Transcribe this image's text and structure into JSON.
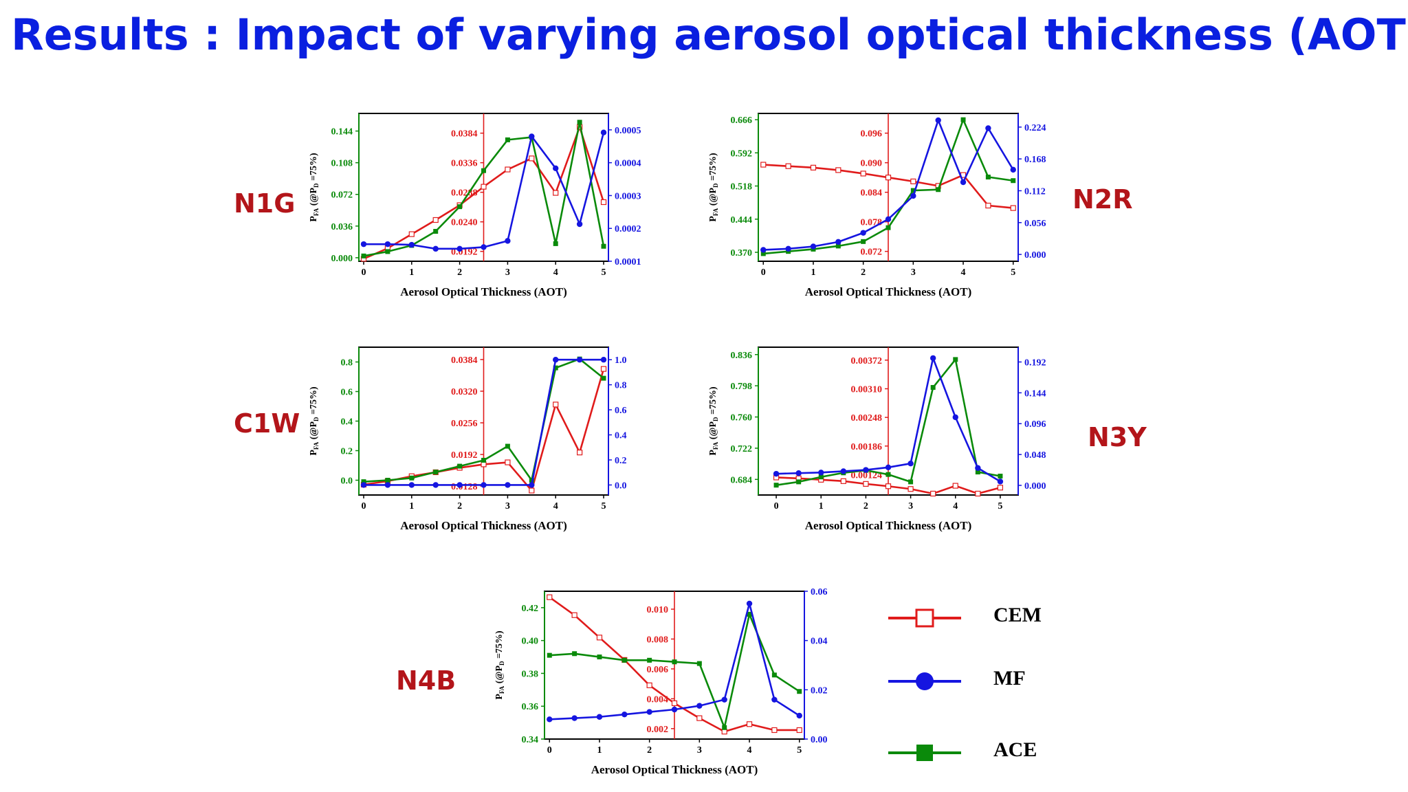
{
  "page": {
    "title": "Results : Impact of varying aerosol optical thickness (AOT)"
  },
  "colors": {
    "CEM": "#e01b1b",
    "MF": "#1515e0",
    "ACE": "#0a8a0a",
    "title": "#0a1fe0",
    "label": "#b3151a"
  },
  "legend": [
    {
      "name": "CEM",
      "marker": "open-square",
      "color": "#e01b1b"
    },
    {
      "name": "MF",
      "marker": "filled-circle",
      "color": "#1515e0"
    },
    {
      "name": "ACE",
      "marker": "filled-square",
      "color": "#0a8a0a"
    }
  ],
  "chart_data": [
    {
      "id": "n1g",
      "label": "N1G",
      "type": "line",
      "xlabel": "Aerosol Optical Thickness (AOT)",
      "ylabel": "P_FA (@P_D =75%)",
      "x": [
        0,
        0.5,
        1,
        1.5,
        2,
        2.5,
        3,
        3.5,
        4,
        4.5,
        5
      ],
      "xlim": [
        -0.1,
        5.1
      ],
      "xticks": [
        0,
        1,
        2,
        3,
        4,
        5
      ],
      "vline": 2.5,
      "left_axis": {
        "color": "#0a8a0a",
        "series": "ACE",
        "range": [
          -0.004,
          0.164
        ],
        "ticks": [
          0.0,
          0.036,
          0.072,
          0.108,
          0.144
        ],
        "labels": [
          "0.000",
          "0.036",
          "0.072",
          "0.108",
          "0.144"
        ]
      },
      "inner_axis": {
        "color": "#e01b1b",
        "series": "CEM",
        "range": [
          0.0176,
          0.0416
        ],
        "ticks": [
          0.0192,
          0.024,
          0.0288,
          0.0336,
          0.0384
        ],
        "labels": [
          "0.0192",
          "0.0240",
          "0.0288",
          "0.0336",
          "0.0384"
        ]
      },
      "right_axis": {
        "color": "#1515e0",
        "series": "MF",
        "range": [
          0.0001,
          0.00055
        ],
        "ticks": [
          0.0001,
          0.0002,
          0.0003,
          0.0004,
          0.0005
        ],
        "labels": [
          "0.0001",
          "0.0002",
          "0.0003",
          "0.0004",
          "0.0005"
        ]
      },
      "series": [
        {
          "name": "CEM",
          "values": [
            0.018,
            0.0197,
            0.022,
            0.0243,
            0.0267,
            0.0297,
            0.0325,
            0.0343,
            0.0287,
            0.0394,
            0.0272
          ]
        },
        {
          "name": "MF",
          "values": [
            0.000152,
            0.000152,
            0.00015,
            0.000138,
            0.000138,
            0.000143,
            0.000162,
            0.00048,
            0.000383,
            0.000213,
            0.000492
          ]
        },
        {
          "name": "ACE",
          "values": [
            0.002,
            0.007,
            0.014,
            0.03,
            0.058,
            0.099,
            0.134,
            0.137,
            0.016,
            0.154,
            0.013
          ]
        }
      ]
    },
    {
      "id": "n2r",
      "label": "N2R",
      "type": "line",
      "xlabel": "Aerosol Optical Thickness (AOT)",
      "ylabel": "P_FA (@P_D =75%)",
      "x": [
        0,
        0.5,
        1,
        1.5,
        2,
        2.5,
        3,
        3.5,
        4,
        4.5,
        5
      ],
      "xlim": [
        -0.1,
        5.1
      ],
      "xticks": [
        0,
        1,
        2,
        3,
        4,
        5
      ],
      "vline": 2.5,
      "left_axis": {
        "color": "#0a8a0a",
        "series": "ACE",
        "range": [
          0.35,
          0.68
        ],
        "ticks": [
          0.37,
          0.444,
          0.518,
          0.592,
          0.666
        ],
        "labels": [
          "0.370",
          "0.444",
          "0.518",
          "0.592",
          "0.666"
        ]
      },
      "inner_axis": {
        "color": "#e01b1b",
        "series": "CEM",
        "range": [
          0.07,
          0.1
        ],
        "ticks": [
          0.072,
          0.078,
          0.084,
          0.09,
          0.096
        ],
        "labels": [
          "0.072",
          "0.078",
          "0.084",
          "0.090",
          "0.096"
        ]
      },
      "right_axis": {
        "color": "#1515e0",
        "series": "MF",
        "range": [
          -0.012,
          0.248
        ],
        "ticks": [
          0.0,
          0.056,
          0.112,
          0.168,
          0.224
        ],
        "labels": [
          "0.000",
          "0.056",
          "0.112",
          "0.168",
          "0.224"
        ]
      },
      "series": [
        {
          "name": "CEM",
          "values": [
            0.0896,
            0.0893,
            0.089,
            0.0885,
            0.0878,
            0.087,
            0.0862,
            0.0853,
            0.0875,
            0.0813,
            0.0808
          ]
        },
        {
          "name": "MF",
          "values": [
            0.008,
            0.01,
            0.014,
            0.022,
            0.038,
            0.062,
            0.103,
            0.236,
            0.127,
            0.222,
            0.149
          ]
        },
        {
          "name": "ACE",
          "values": [
            0.367,
            0.372,
            0.377,
            0.384,
            0.394,
            0.425,
            0.508,
            0.51,
            0.666,
            0.538,
            0.53
          ]
        }
      ]
    },
    {
      "id": "c1w",
      "label": "C1W",
      "type": "line",
      "xlabel": "Aerosol Optical Thickness (AOT)",
      "ylabel": "P_FA (@P_D =75%)",
      "x": [
        0,
        0.5,
        1,
        1.5,
        2,
        2.5,
        3,
        3.5,
        4,
        4.5,
        5
      ],
      "xlim": [
        -0.1,
        5.1
      ],
      "xticks": [
        0,
        1,
        2,
        3,
        4,
        5
      ],
      "vline": 2.5,
      "left_axis": {
        "color": "#0a8a0a",
        "series": "ACE",
        "range": [
          -0.1,
          0.9
        ],
        "ticks": [
          0.0,
          0.2,
          0.4,
          0.6,
          0.8
        ],
        "labels": [
          "0.0",
          "0.2",
          "0.4",
          "0.6",
          "0.8"
        ]
      },
      "inner_axis": {
        "color": "#e01b1b",
        "series": "CEM",
        "range": [
          0.011,
          0.0409
        ],
        "ticks": [
          0.0128,
          0.0192,
          0.0256,
          0.032,
          0.0384
        ],
        "labels": [
          "0.0128",
          "0.0192",
          "0.0256",
          "0.0320",
          "0.0384"
        ]
      },
      "right_axis": {
        "color": "#1515e0",
        "series": "MF",
        "range": [
          -0.08,
          1.1
        ],
        "ticks": [
          0.0,
          0.2,
          0.4,
          0.6,
          0.8,
          1.0
        ],
        "labels": [
          "0.0",
          "0.2",
          "0.4",
          "0.6",
          "0.8",
          "1.0"
        ]
      },
      "series": [
        {
          "name": "CEM",
          "values": [
            0.0131,
            0.0138,
            0.0148,
            0.0156,
            0.0165,
            0.0172,
            0.0176,
            0.0119,
            0.0293,
            0.0196,
            0.0365
          ]
        },
        {
          "name": "MF",
          "values": [
            0.0,
            0.0,
            0.0,
            0.0,
            0.0,
            0.0,
            0.0,
            0.0,
            1.0,
            1.0,
            1.0
          ]
        },
        {
          "name": "ACE",
          "values": [
            -0.01,
            0.0,
            0.015,
            0.055,
            0.095,
            0.135,
            0.23,
            0.0,
            0.76,
            0.82,
            0.69
          ]
        }
      ]
    },
    {
      "id": "n3y",
      "label": "N3Y",
      "type": "line",
      "xlabel": "Aerosol Optical Thickness (AOT)",
      "ylabel": "P_FA (@P_D =75%)",
      "x": [
        0,
        0.5,
        1,
        1.5,
        2,
        2.5,
        3,
        3.5,
        4,
        4.5,
        5
      ],
      "xlim": [
        -0.4,
        5.4
      ],
      "xticks": [
        0,
        1,
        2,
        3,
        4,
        5
      ],
      "vline": 2.5,
      "left_axis": {
        "color": "#0a8a0a",
        "series": "ACE",
        "range": [
          0.665,
          0.845
        ],
        "ticks": [
          0.684,
          0.722,
          0.76,
          0.798,
          0.836
        ],
        "labels": [
          "0.684",
          "0.722",
          "0.760",
          "0.798",
          "0.836"
        ]
      },
      "inner_axis": {
        "color": "#e01b1b",
        "series": "CEM",
        "range": [
          0.0008,
          0.004
        ],
        "ticks": [
          0.00124,
          0.00186,
          0.00248,
          0.0031,
          0.00372
        ],
        "labels": [
          "0.00124",
          "0.00186",
          "0.00248",
          "0.00310",
          "0.00372"
        ]
      },
      "right_axis": {
        "color": "#1515e0",
        "series": "MF",
        "range": [
          -0.015,
          0.215
        ],
        "ticks": [
          0.0,
          0.048,
          0.096,
          0.144,
          0.192
        ],
        "labels": [
          "0.000",
          "0.048",
          "0.096",
          "0.144",
          "0.192"
        ]
      },
      "series": [
        {
          "name": "CEM",
          "values": [
            0.00118,
            0.00116,
            0.00113,
            0.0011,
            0.00104,
            0.00099,
            0.00093,
            0.00083,
            0.001,
            0.00083,
            0.00096
          ]
        },
        {
          "name": "MF",
          "values": [
            0.018,
            0.019,
            0.02,
            0.022,
            0.024,
            0.028,
            0.034,
            0.198,
            0.106,
            0.027,
            0.006
          ]
        },
        {
          "name": "ACE",
          "values": [
            0.677,
            0.681,
            0.687,
            0.692,
            0.695,
            0.69,
            0.681,
            0.796,
            0.83,
            0.693,
            0.688
          ]
        }
      ]
    },
    {
      "id": "n4b",
      "label": "N4B",
      "type": "line",
      "xlabel": "Aerosol Optical Thickness (AOT)",
      "ylabel": "P_FA (@P_D =75%)",
      "x": [
        0,
        0.5,
        1,
        1.5,
        2,
        2.5,
        3,
        3.5,
        4,
        4.5,
        5
      ],
      "xlim": [
        -0.1,
        5.1
      ],
      "xticks": [
        0,
        1,
        2,
        3,
        4,
        5
      ],
      "vline": 2.5,
      "left_axis": {
        "color": "#0a8a0a",
        "series": "ACE",
        "range": [
          0.34,
          0.43
        ],
        "ticks": [
          0.34,
          0.36,
          0.38,
          0.4,
          0.42
        ],
        "labels": [
          "0.34",
          "0.36",
          "0.38",
          "0.40",
          "0.42"
        ]
      },
      "inner_axis": {
        "color": "#e01b1b",
        "series": "CEM",
        "range": [
          0.0013,
          0.0112
        ],
        "ticks": [
          0.002,
          0.004,
          0.006,
          0.008,
          0.01
        ],
        "labels": [
          "0.002",
          "0.004",
          "0.006",
          "0.008",
          "0.010"
        ]
      },
      "right_axis": {
        "color": "#1515e0",
        "series": "MF",
        "range": [
          0.0,
          0.06
        ],
        "ticks": [
          0.0,
          0.02,
          0.04,
          0.06
        ],
        "labels": [
          "0.00",
          "0.02",
          "0.04",
          "0.06"
        ]
      },
      "series": [
        {
          "name": "CEM",
          "values": [
            0.0108,
            0.0096,
            0.0081,
            0.0066,
            0.0049,
            0.0037,
            0.0027,
            0.0018,
            0.0023,
            0.0019,
            0.0019
          ]
        },
        {
          "name": "MF",
          "values": [
            0.008,
            0.0085,
            0.009,
            0.01,
            0.011,
            0.012,
            0.0135,
            0.016,
            0.055,
            0.016,
            0.0095
          ]
        },
        {
          "name": "ACE",
          "values": [
            0.391,
            0.392,
            0.39,
            0.388,
            0.388,
            0.387,
            0.386,
            0.347,
            0.416,
            0.379,
            0.369
          ]
        }
      ]
    }
  ]
}
